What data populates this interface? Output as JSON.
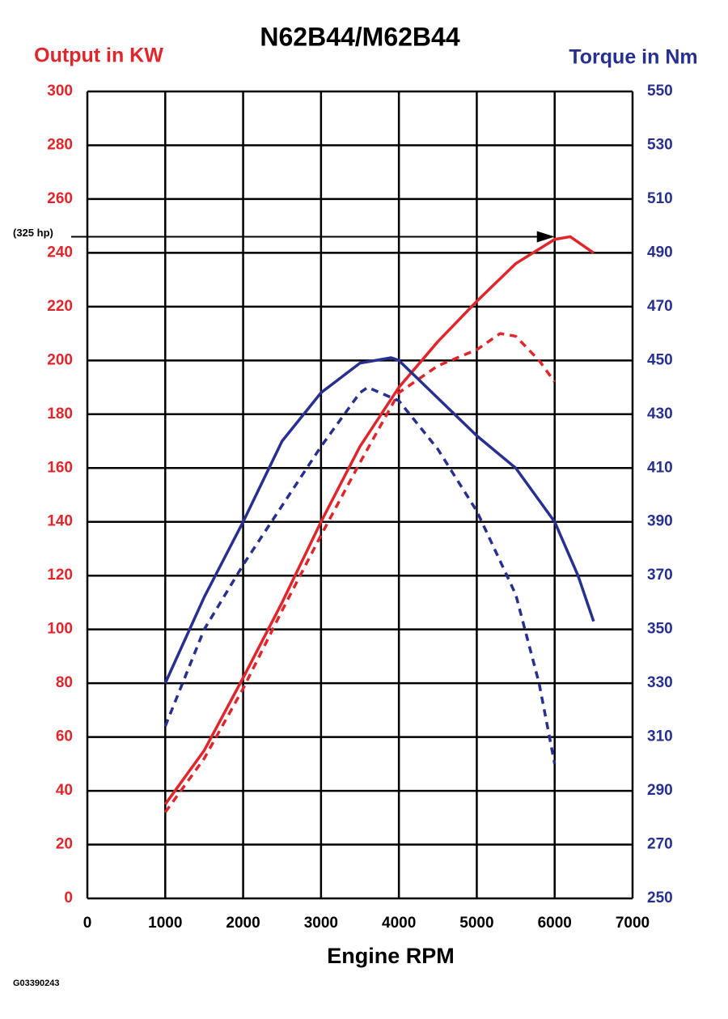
{
  "chart_data": {
    "type": "line",
    "title": "N62B44/M62B44",
    "ylabel": "Output in KW",
    "y2label": "Torque in Nm",
    "xlabel": "Engine RPM",
    "xlim": [
      0,
      7000
    ],
    "xticks": [
      0,
      1000,
      2000,
      3000,
      4000,
      5000,
      6000,
      7000
    ],
    "ylim": [
      0,
      300
    ],
    "yticks": [
      0,
      20,
      40,
      60,
      80,
      100,
      120,
      140,
      160,
      180,
      200,
      220,
      240,
      260,
      280,
      300
    ],
    "y2lim": [
      250,
      550
    ],
    "y2ticks": [
      250,
      270,
      290,
      310,
      330,
      350,
      370,
      390,
      410,
      430,
      450,
      470,
      490,
      510,
      530,
      550
    ],
    "grid": true,
    "series": [
      {
        "color": "#e0262b",
        "style": "solid",
        "x": [
          1000,
          1500,
          2000,
          2500,
          3000,
          3500,
          4000,
          4500,
          5000,
          5500,
          6000,
          6200,
          6500
        ],
        "values": [
          35,
          55,
          82,
          110,
          140,
          168,
          190,
          207,
          222,
          236,
          245,
          246,
          240
        ]
      },
      {
        "color": "#e0262b",
        "style": "dashed",
        "x": [
          1000,
          1500,
          2000,
          2500,
          3000,
          3500,
          4000,
          4500,
          5000,
          5300,
          5500,
          5800,
          6000
        ],
        "values": [
          32,
          52,
          78,
          107,
          135,
          162,
          188,
          198,
          204,
          210,
          209,
          200,
          192
        ]
      },
      {
        "color": "#27308f",
        "style": "solid",
        "axis": "y2",
        "x": [
          1000,
          1500,
          2000,
          2500,
          3000,
          3500,
          3900,
          4000,
          4500,
          5000,
          5500,
          6000,
          6300,
          6500
        ],
        "values": [
          330,
          362,
          390,
          420,
          438,
          449,
          451,
          450,
          436,
          422,
          410,
          390,
          370,
          353
        ]
      },
      {
        "color": "#27308f",
        "style": "dashed",
        "axis": "y2",
        "x": [
          1000,
          1500,
          2000,
          2500,
          3000,
          3500,
          3600,
          4000,
          4500,
          5000,
          5500,
          5800,
          6000
        ],
        "values": [
          314,
          350,
          374,
          396,
          418,
          438,
          440,
          435,
          417,
          394,
          363,
          330,
          300
        ]
      }
    ],
    "annotation": {
      "text": "(325 hp)",
      "y": 246,
      "x": 6000
    },
    "footnote": "G03390243"
  }
}
